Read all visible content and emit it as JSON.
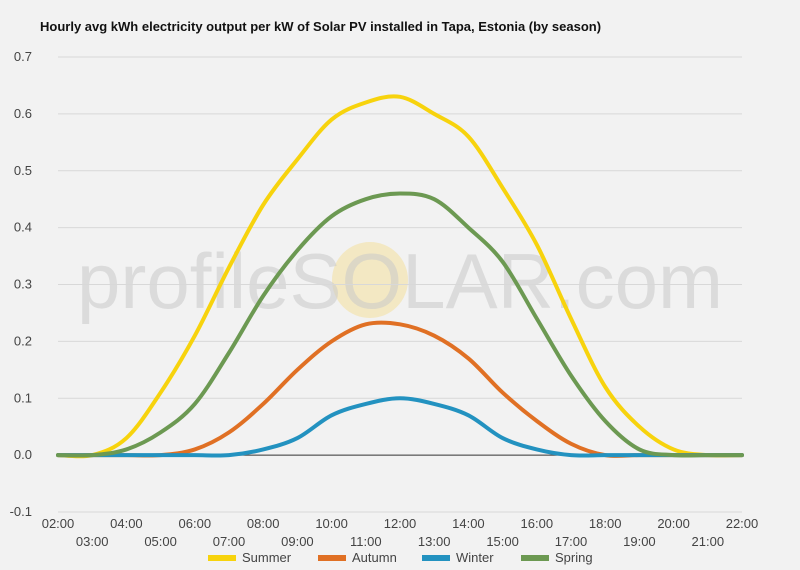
{
  "chart_data": {
    "type": "line",
    "title": "Hourly avg kWh electricity output per kW of Solar PV installed in Tapa, Estonia (by season)",
    "watermark": "profileSOLAR.com",
    "x": [
      "02:00",
      "03:00",
      "04:00",
      "05:00",
      "06:00",
      "07:00",
      "08:00",
      "09:00",
      "10:00",
      "11:00",
      "12:00",
      "13:00",
      "14:00",
      "15:00",
      "16:00",
      "17:00",
      "18:00",
      "19:00",
      "20:00",
      "21:00",
      "22:00"
    ],
    "ylim": [
      -0.1,
      0.7
    ],
    "yticks": [
      -0.1,
      0.0,
      0.1,
      0.2,
      0.3,
      0.4,
      0.5,
      0.6,
      0.7
    ],
    "grid": true,
    "legend_position": "bottom",
    "series": [
      {
        "name": "Summer",
        "color": "#f7d30d",
        "values": [
          0.0,
          0.0,
          0.03,
          0.11,
          0.21,
          0.33,
          0.44,
          0.52,
          0.59,
          0.62,
          0.63,
          0.6,
          0.56,
          0.47,
          0.37,
          0.24,
          0.12,
          0.05,
          0.01,
          0.0,
          0.0
        ]
      },
      {
        "name": "Autumn",
        "color": "#e07024",
        "values": [
          0.0,
          0.0,
          0.0,
          0.0,
          0.01,
          0.04,
          0.09,
          0.15,
          0.2,
          0.23,
          0.23,
          0.21,
          0.17,
          0.11,
          0.06,
          0.02,
          0.0,
          0.0,
          0.0,
          0.0,
          0.0
        ]
      },
      {
        "name": "Winter",
        "color": "#2392c0",
        "values": [
          0.0,
          0.0,
          0.0,
          0.0,
          0.0,
          0.0,
          0.01,
          0.03,
          0.07,
          0.09,
          0.1,
          0.09,
          0.07,
          0.03,
          0.01,
          0.0,
          0.0,
          0.0,
          0.0,
          0.0,
          0.0
        ]
      },
      {
        "name": "Spring",
        "color": "#6c9952",
        "values": [
          0.0,
          0.0,
          0.01,
          0.04,
          0.09,
          0.18,
          0.28,
          0.36,
          0.42,
          0.45,
          0.46,
          0.45,
          0.4,
          0.34,
          0.24,
          0.14,
          0.06,
          0.01,
          0.0,
          0.0,
          0.0
        ]
      }
    ]
  }
}
